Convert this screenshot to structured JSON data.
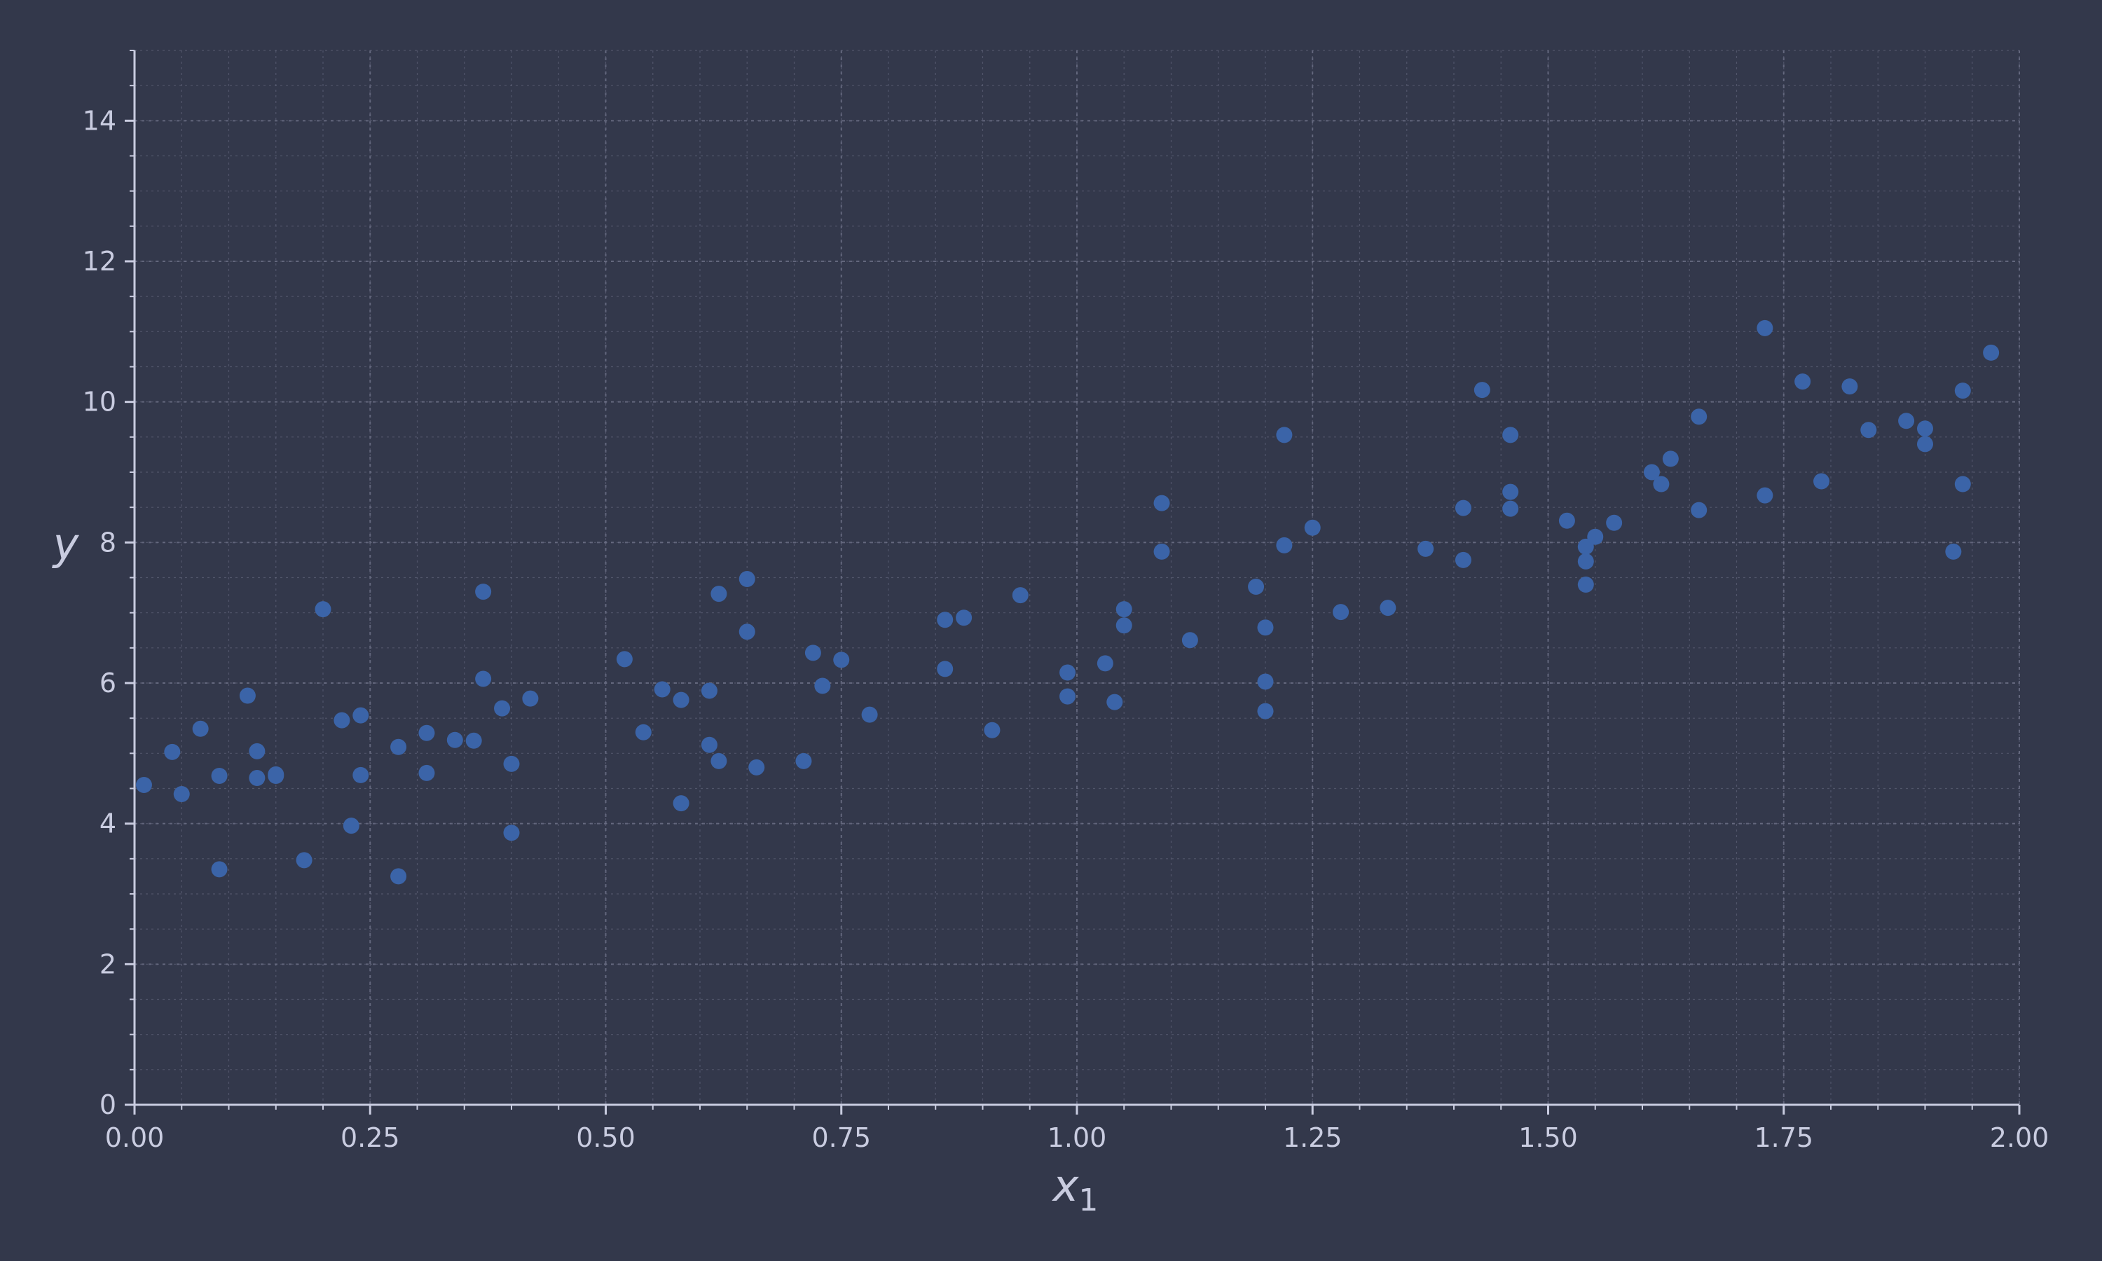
{
  "chart_data": {
    "type": "scatter",
    "title": "",
    "xlabel": "x",
    "xlabel_sub": "1",
    "ylabel": "y",
    "xlim": [
      0,
      2
    ],
    "ylim": [
      0,
      15
    ],
    "x_ticks": [
      "0.00",
      "0.25",
      "0.50",
      "0.75",
      "1.00",
      "1.25",
      "1.50",
      "1.75",
      "2.00"
    ],
    "y_ticks": [
      "0",
      "2",
      "4",
      "6",
      "8",
      "10",
      "12",
      "14"
    ],
    "grid": true,
    "colors": {
      "background": "#33384b",
      "point": "#3b64a8",
      "grid": "#6a6e84",
      "text": "#c9cce0"
    },
    "points": [
      [
        0.01,
        4.55
      ],
      [
        0.04,
        5.02
      ],
      [
        0.05,
        4.42
      ],
      [
        0.07,
        5.35
      ],
      [
        0.09,
        4.68
      ],
      [
        0.09,
        3.35
      ],
      [
        0.12,
        5.82
      ],
      [
        0.13,
        5.03
      ],
      [
        0.13,
        4.65
      ],
      [
        0.15,
        4.68
      ],
      [
        0.15,
        4.7
      ],
      [
        0.18,
        3.48
      ],
      [
        0.2,
        7.05
      ],
      [
        0.22,
        5.47
      ],
      [
        0.23,
        3.97
      ],
      [
        0.24,
        5.54
      ],
      [
        0.24,
        4.69
      ],
      [
        0.28,
        5.09
      ],
      [
        0.28,
        3.25
      ],
      [
        0.31,
        5.29
      ],
      [
        0.31,
        4.72
      ],
      [
        0.34,
        5.19
      ],
      [
        0.36,
        5.18
      ],
      [
        0.37,
        6.06
      ],
      [
        0.37,
        7.3
      ],
      [
        0.39,
        5.64
      ],
      [
        0.4,
        4.85
      ],
      [
        0.4,
        3.87
      ],
      [
        0.42,
        5.78
      ],
      [
        0.52,
        6.34
      ],
      [
        0.54,
        5.3
      ],
      [
        0.56,
        5.91
      ],
      [
        0.58,
        5.76
      ],
      [
        0.58,
        4.29
      ],
      [
        0.61,
        5.89
      ],
      [
        0.61,
        5.12
      ],
      [
        0.62,
        4.89
      ],
      [
        0.62,
        7.27
      ],
      [
        0.65,
        7.48
      ],
      [
        0.65,
        6.73
      ],
      [
        0.66,
        4.8
      ],
      [
        0.71,
        4.89
      ],
      [
        0.72,
        6.43
      ],
      [
        0.73,
        5.96
      ],
      [
        0.75,
        6.33
      ],
      [
        0.78,
        5.55
      ],
      [
        0.86,
        6.9
      ],
      [
        0.86,
        6.2
      ],
      [
        0.88,
        6.93
      ],
      [
        0.91,
        5.33
      ],
      [
        0.94,
        7.25
      ],
      [
        0.99,
        6.15
      ],
      [
        0.99,
        5.81
      ],
      [
        1.03,
        6.28
      ],
      [
        1.04,
        5.73
      ],
      [
        1.05,
        7.05
      ],
      [
        1.05,
        6.82
      ],
      [
        1.09,
        8.56
      ],
      [
        1.09,
        7.87
      ],
      [
        1.12,
        6.61
      ],
      [
        1.19,
        7.37
      ],
      [
        1.2,
        6.02
      ],
      [
        1.2,
        5.6
      ],
      [
        1.2,
        6.79
      ],
      [
        1.22,
        9.53
      ],
      [
        1.22,
        7.96
      ],
      [
        1.25,
        8.21
      ],
      [
        1.28,
        7.01
      ],
      [
        1.33,
        7.07
      ],
      [
        1.37,
        7.91
      ],
      [
        1.41,
        8.49
      ],
      [
        1.41,
        7.75
      ],
      [
        1.43,
        10.17
      ],
      [
        1.46,
        9.53
      ],
      [
        1.46,
        8.72
      ],
      [
        1.46,
        8.48
      ],
      [
        1.52,
        8.31
      ],
      [
        1.54,
        7.94
      ],
      [
        1.54,
        7.73
      ],
      [
        1.54,
        7.4
      ],
      [
        1.55,
        8.08
      ],
      [
        1.57,
        8.28
      ],
      [
        1.61,
        9.0
      ],
      [
        1.62,
        8.83
      ],
      [
        1.63,
        9.19
      ],
      [
        1.66,
        9.79
      ],
      [
        1.66,
        8.46
      ],
      [
        1.73,
        11.05
      ],
      [
        1.73,
        8.67
      ],
      [
        1.77,
        10.29
      ],
      [
        1.79,
        8.87
      ],
      [
        1.82,
        10.22
      ],
      [
        1.84,
        9.6
      ],
      [
        1.88,
        9.73
      ],
      [
        1.9,
        9.62
      ],
      [
        1.9,
        9.4
      ],
      [
        1.93,
        7.87
      ],
      [
        1.94,
        10.16
      ],
      [
        1.94,
        8.83
      ],
      [
        1.97,
        10.7
      ]
    ]
  }
}
